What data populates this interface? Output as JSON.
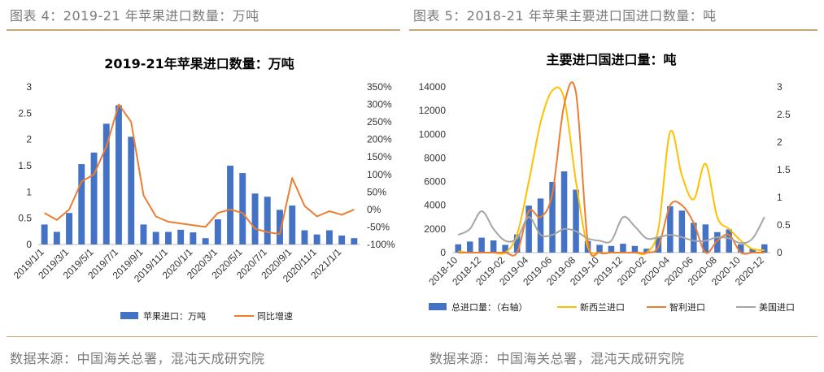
{
  "captions": {
    "left": "图表 4：2019-21 年苹果进口数量：万吨",
    "right": "图表 5：2018-21 年苹果主要进口国进口数量：吨"
  },
  "sources": {
    "left": "数据来源：中国海关总署，混沌天成研究院",
    "right": "数据来源：中国海关总署，混沌天成研究院"
  },
  "colors": {
    "bar": "#4472c4",
    "orange": "#ed7d31",
    "yellow": "#ffc000",
    "gray": "#a5a5a5",
    "rule": "#c8a878"
  },
  "chart_data": [
    {
      "type": "bar",
      "title": "2019-21年苹果进口数量：万吨",
      "categories": [
        "2019/1/1",
        "2019/2/1",
        "2019/3/1",
        "2019/4/1",
        "2019/5/1",
        "2019/6/1",
        "2019/7/1",
        "2019/8/1",
        "2019/9/1",
        "2019/10/1",
        "2019/11/1",
        "2019/12/1",
        "2020/1/1",
        "2020/2/1",
        "2020/3/1",
        "2020/4/1",
        "2020/5/1",
        "2020/6/1",
        "2020/7/1",
        "2020/8/1",
        "2020/9/1",
        "2020/10/1",
        "2020/11/1",
        "2020/12/1",
        "2021/1/1",
        "2021/2/1"
      ],
      "tick_labels": [
        "2019/1/1",
        "2019/3/1",
        "2019/5/1",
        "2019/7/1",
        "2019/9/1",
        "2019/11/1",
        "2020/1/1",
        "2020/3/1",
        "2020/5/1",
        "2020/7/1",
        "2020/9/1",
        "2020/11/1",
        "2021/1/1"
      ],
      "series": [
        {
          "name": "苹果进口：万吨",
          "type": "bar",
          "axis": "left",
          "values": [
            0.38,
            0.24,
            0.6,
            1.53,
            1.75,
            2.3,
            2.65,
            2.05,
            0.38,
            0.24,
            0.24,
            0.28,
            0.23,
            0.12,
            0.48,
            1.5,
            1.36,
            0.97,
            0.91,
            0.66,
            0.74,
            0.27,
            0.19,
            0.27,
            0.17,
            0.12
          ]
        },
        {
          "name": "同比增速",
          "type": "line",
          "axis": "right",
          "values": [
            -10,
            -30,
            0,
            80,
            100,
            180,
            300,
            250,
            40,
            -20,
            -35,
            -40,
            -45,
            -50,
            -10,
            0,
            -10,
            -55,
            -65,
            -70,
            90,
            10,
            -20,
            -5,
            -15,
            0
          ]
        }
      ],
      "ylim_left": [
        0,
        3
      ],
      "yticks_left": [
        "0",
        "0.5",
        "1",
        "1.5",
        "2",
        "2.5",
        "3"
      ],
      "ylim_right": [
        -100,
        350
      ],
      "yticks_right": [
        "-100%",
        "-50%",
        "0%",
        "50%",
        "100%",
        "150%",
        "200%",
        "250%",
        "300%",
        "350%"
      ],
      "legend": "bottom"
    },
    {
      "type": "bar",
      "title": "主要进口国进口量：吨",
      "categories": [
        "2018-10",
        "2018-11",
        "2018-12",
        "2019-01",
        "2019-02",
        "2019-03",
        "2019-04",
        "2019-05",
        "2019-06",
        "2019-07",
        "2019-08",
        "2019-09",
        "2019-10",
        "2019-11",
        "2019-12",
        "2020-01",
        "2020-02",
        "2020-03",
        "2020-04",
        "2020-05",
        "2020-06",
        "2020-07",
        "2020-08",
        "2020-09",
        "2020-10",
        "2020-11",
        "2020-12"
      ],
      "tick_labels": [
        "2018-10",
        "2018-12",
        "2019-02",
        "2019-04",
        "2019-06",
        "2019-08",
        "2019-10",
        "2019-12",
        "2020-02",
        "2020-04",
        "2020-06",
        "2020-08",
        "2020-10",
        "2020-12"
      ],
      "series": [
        {
          "name": "总进口量：（右轴）",
          "type": "bar",
          "axis": "right",
          "values": [
            0.15,
            0.2,
            0.27,
            0.22,
            0.14,
            0.33,
            0.85,
            0.98,
            1.28,
            1.47,
            1.14,
            0.21,
            0.14,
            0.12,
            0.16,
            0.12,
            0.07,
            0.27,
            0.84,
            0.76,
            0.54,
            0.51,
            0.37,
            0.42,
            0.15,
            0.07,
            0.15
          ]
        },
        {
          "name": "新西兰进口",
          "type": "line",
          "axis": "left",
          "values": [
            100,
            0,
            0,
            0,
            0,
            1500,
            6000,
            11000,
            13700,
            13000,
            6000,
            500,
            0,
            0,
            0,
            0,
            0,
            2000,
            10200,
            6500,
            4500,
            7500,
            3000,
            2000,
            1000,
            300,
            200
          ]
        },
        {
          "name": "智利进口",
          "type": "line",
          "axis": "left",
          "values": [
            0,
            0,
            0,
            0,
            0,
            0,
            3500,
            3000,
            5000,
            12500,
            13500,
            1000,
            0,
            0,
            0,
            0,
            0,
            500,
            4000,
            4000,
            2500,
            0,
            1000,
            1500,
            0,
            0,
            0
          ]
        },
        {
          "name": "美国进口",
          "type": "line",
          "axis": "left",
          "values": [
            1500,
            2000,
            3500,
            2000,
            1000,
            1200,
            3000,
            1500,
            1500,
            2000,
            1800,
            1200,
            1000,
            1000,
            3000,
            2200,
            1200,
            1300,
            1500,
            1300,
            1000,
            1000,
            1300,
            1200,
            800,
            1200,
            3000
          ]
        }
      ],
      "ylim_left": [
        0,
        14000
      ],
      "yticks_left": [
        "0",
        "2000",
        "4000",
        "6000",
        "8000",
        "10000",
        "12000",
        "14000"
      ],
      "ylim_right": [
        0,
        3
      ],
      "yticks_right": [
        "0",
        "0.5",
        "1",
        "1.5",
        "2",
        "2.5",
        "3"
      ],
      "legend": "bottom"
    }
  ]
}
